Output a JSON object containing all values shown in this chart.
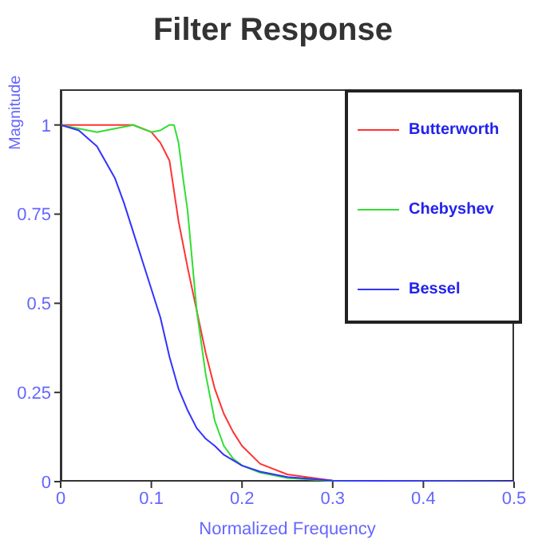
{
  "chart_data": {
    "type": "line",
    "title": "Filter Response",
    "xlabel": "Normalized Frequency",
    "ylabel": "Magnitude",
    "xlim": [
      0,
      0.5
    ],
    "xticks": [
      0,
      0.1,
      0.2,
      0.3,
      0.4,
      0.5
    ],
    "ylim": [
      0,
      1.1
    ],
    "yticks": [
      0,
      0.25,
      0.5,
      0.75,
      1
    ],
    "grid": false,
    "legend": "top right",
    "marker": "none",
    "line_style": "solid",
    "series": [
      {
        "name": "Butterworth",
        "color": "#ff3333",
        "x": [
          0,
          0.04,
          0.08,
          0.1,
          0.11,
          0.12,
          0.13,
          0.14,
          0.15,
          0.16,
          0.17,
          0.18,
          0.19,
          0.2,
          0.22,
          0.25,
          0.3,
          0.35,
          0.5
        ],
        "values": [
          1,
          1,
          1,
          0.98,
          0.95,
          0.9,
          0.73,
          0.6,
          0.48,
          0.36,
          0.26,
          0.19,
          0.14,
          0.1,
          0.05,
          0.02,
          0.003,
          0.001,
          0
        ]
      },
      {
        "name": "Chebyshev",
        "color": "#33dd33",
        "x": [
          0,
          0.02,
          0.04,
          0.06,
          0.08,
          0.1,
          0.11,
          0.12,
          0.125,
          0.13,
          0.135,
          0.14,
          0.15,
          0.16,
          0.17,
          0.18,
          0.19,
          0.2,
          0.22,
          0.25,
          0.3,
          0.5
        ],
        "values": [
          1,
          0.99,
          0.98,
          0.99,
          1,
          0.98,
          0.985,
          1,
          1,
          0.95,
          0.85,
          0.76,
          0.48,
          0.3,
          0.17,
          0.1,
          0.065,
          0.045,
          0.025,
          0.01,
          0.002,
          0
        ]
      },
      {
        "name": "Bessel",
        "color": "#3333ff",
        "x": [
          0,
          0.02,
          0.04,
          0.06,
          0.07,
          0.08,
          0.09,
          0.1,
          0.11,
          0.12,
          0.13,
          0.14,
          0.15,
          0.16,
          0.17,
          0.18,
          0.2,
          0.22,
          0.25,
          0.3,
          0.5
        ],
        "values": [
          1,
          0.985,
          0.94,
          0.85,
          0.78,
          0.7,
          0.62,
          0.54,
          0.46,
          0.35,
          0.26,
          0.2,
          0.15,
          0.12,
          0.1,
          0.075,
          0.045,
          0.028,
          0.013,
          0.003,
          0
        ]
      }
    ]
  }
}
